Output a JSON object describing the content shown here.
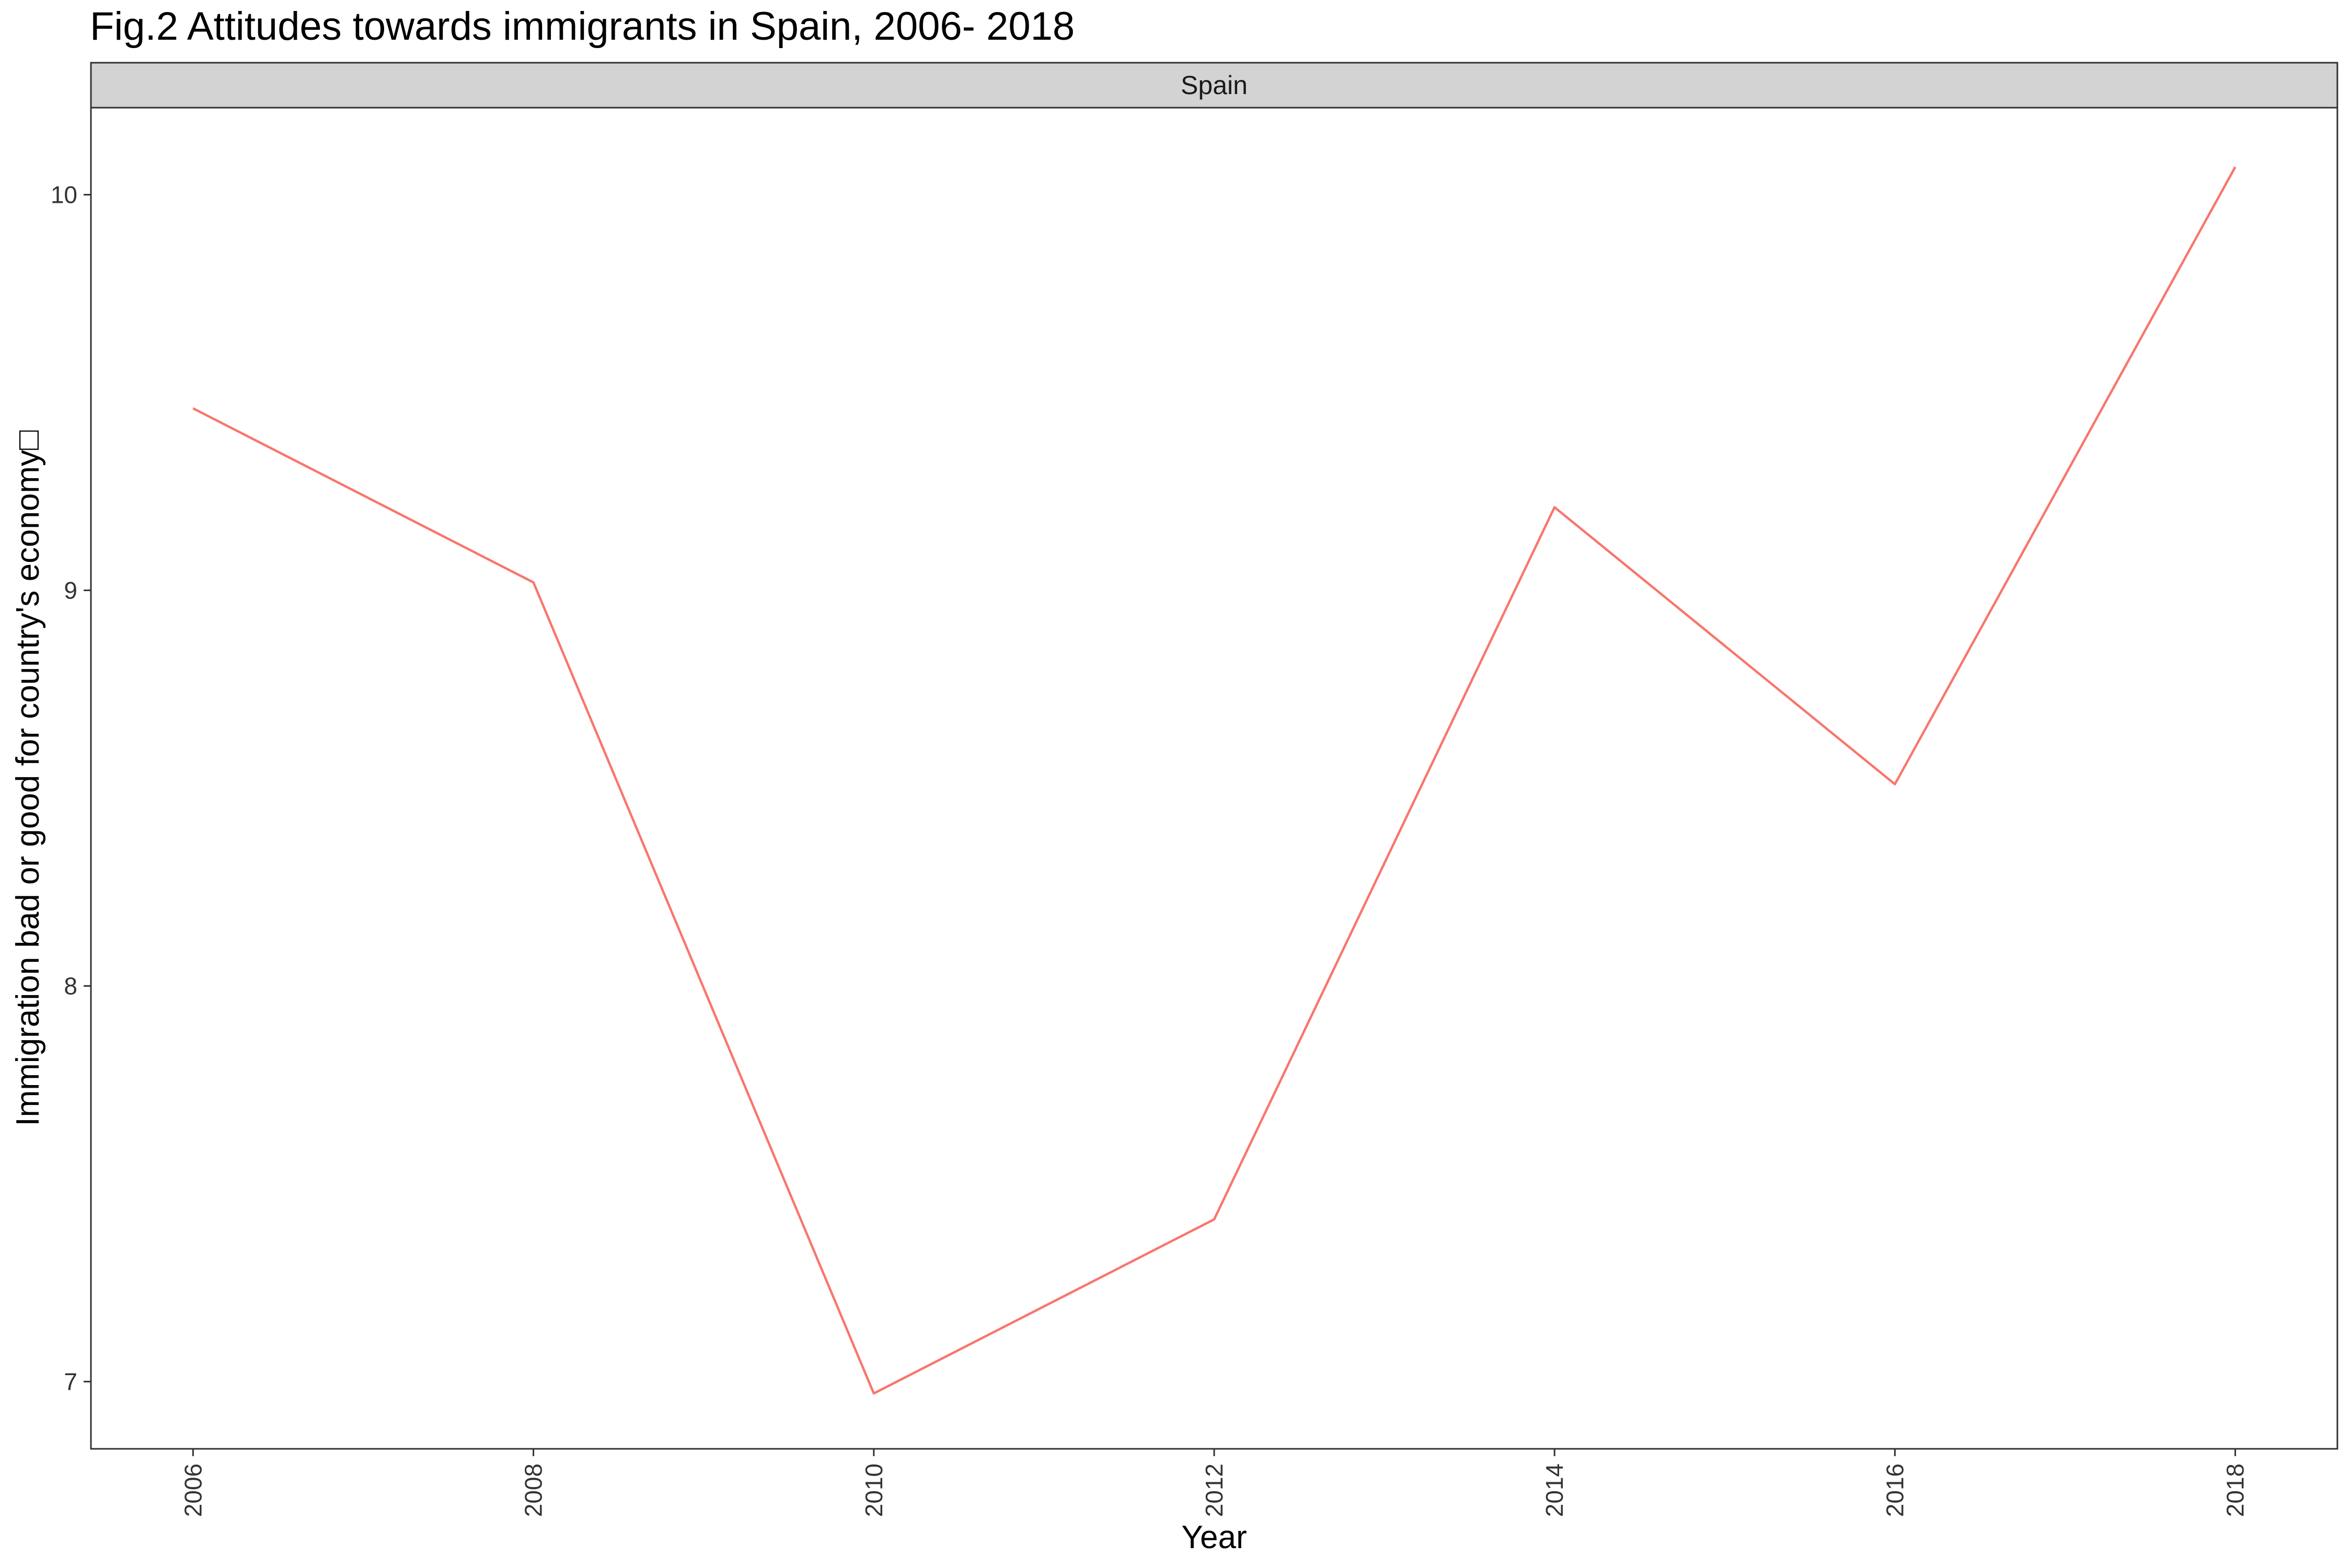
{
  "chart_data": {
    "type": "line",
    "title": "Fig.2 Attitudes towards immigrants in Spain, 2006- 2018",
    "facet_label": "Spain",
    "xlabel": "Year",
    "ylabel": "Immigration bad or good for country's economy□",
    "x": [
      2006,
      2008,
      2010,
      2012,
      2014,
      2016,
      2018
    ],
    "x_ticks": [
      "2006",
      "2008",
      "2010",
      "2012",
      "2014",
      "2016",
      "2018"
    ],
    "y_ticks": [
      "7",
      "8",
      "9",
      "10"
    ],
    "xlim": [
      2005.4,
      2018.6
    ],
    "ylim": [
      6.83,
      10.22
    ],
    "series": [
      {
        "values": [
          9.46,
          9.02,
          6.97,
          7.41,
          9.21,
          8.51,
          10.07
        ],
        "color": "#F8766D"
      }
    ],
    "grid": false,
    "legend": "none",
    "colors": {
      "strip_fill": "#D3D3D3",
      "panel_border": "#333333"
    }
  }
}
